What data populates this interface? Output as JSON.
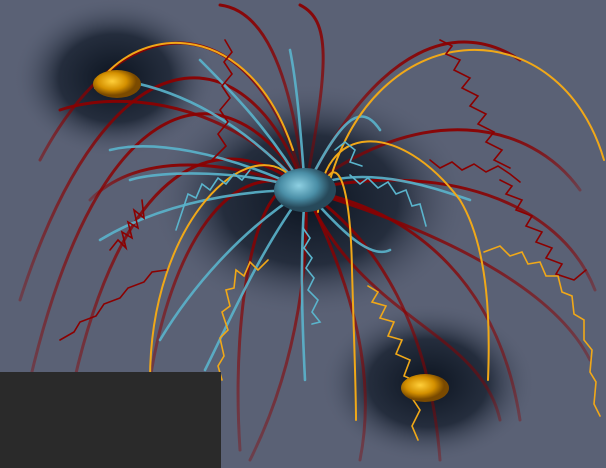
{
  "colors": {
    "background": "#5a6175",
    "halo": "#0c1420",
    "core": "#5fa8bf",
    "node": "#e0a010",
    "red_line": "#8b0000",
    "cyan_line": "#5ab4cc",
    "yellow_line": "#f0a818",
    "panel": "#2a2a2a"
  },
  "icons": [
    "central-core-icon",
    "node-icon-top-left",
    "node-icon-bottom-right"
  ]
}
